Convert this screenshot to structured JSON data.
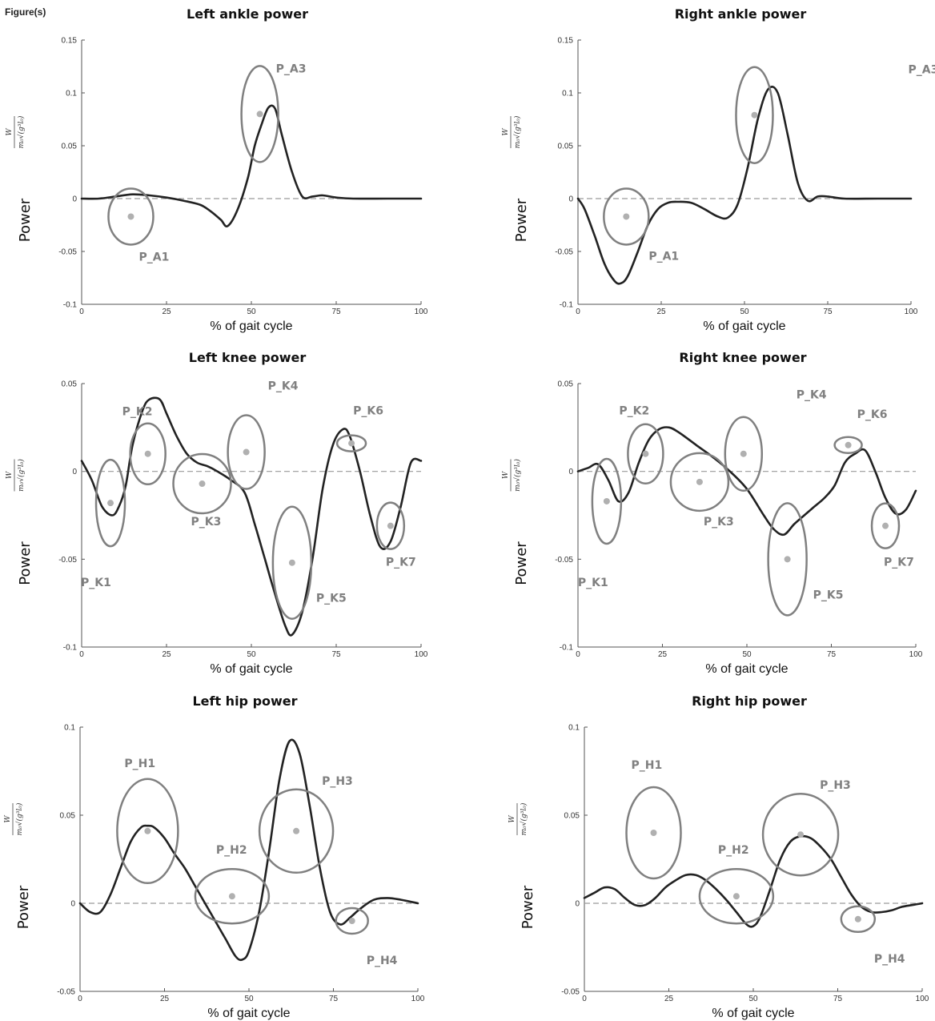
{
  "figure_label": "Figure(s)",
  "chart_data": [
    {
      "type": "line",
      "title": "Left ankle power",
      "xlabel": "% of gait cycle",
      "ylabel": "Power",
      "yunit_num": "W",
      "yunit_den": "m₀√(g³l₀)",
      "xlim": [
        0,
        100
      ],
      "ylim": [
        -0.1,
        0.15
      ],
      "xticks": [
        "0",
        "25",
        "50",
        "75",
        "100"
      ],
      "yticks": [
        "-0.1",
        "-0.05",
        "0",
        "0.05",
        "0.1",
        "0.15"
      ],
      "series": [
        {
          "x": [
            0,
            5,
            10,
            15,
            20,
            25,
            30,
            35,
            38,
            41,
            43,
            46,
            49,
            51,
            53,
            55,
            57,
            59,
            62,
            65,
            68,
            71,
            75,
            80,
            90,
            100
          ],
          "y": [
            0,
            0,
            0.002,
            0.004,
            0.003,
            0.001,
            -0.002,
            -0.006,
            -0.012,
            -0.02,
            -0.026,
            -0.01,
            0.02,
            0.05,
            0.07,
            0.086,
            0.085,
            0.06,
            0.025,
            0.002,
            0.002,
            0.003,
            0.001,
            0,
            0,
            0
          ]
        }
      ],
      "points": [
        {
          "label": "P_A1",
          "x": 14.5,
          "y": -0.017
        },
        {
          "label": "P_A3",
          "x": 52.5,
          "y": 0.08
        }
      ]
    },
    {
      "type": "line",
      "title": "Right ankle power",
      "xlabel": "% of gait cycle",
      "ylabel": "Power",
      "yunit_num": "W",
      "yunit_den": "m₀√(g³l₀)",
      "xlim": [
        0,
        100
      ],
      "ylim": [
        -0.1,
        0.15
      ],
      "xticks": [
        "0",
        "25",
        "50",
        "75",
        "100"
      ],
      "yticks": [
        "-0.1",
        "-0.05",
        "0",
        "0.05",
        "0.1",
        "0.15"
      ],
      "series": [
        {
          "x": [
            0,
            2,
            5,
            8,
            11,
            13,
            15,
            18,
            21,
            24,
            27,
            30,
            34,
            38,
            42,
            45,
            48,
            51,
            54,
            57,
            60,
            63,
            66,
            69,
            72,
            75,
            80,
            90,
            100
          ],
          "y": [
            0,
            -0.01,
            -0.035,
            -0.062,
            -0.078,
            -0.08,
            -0.073,
            -0.05,
            -0.025,
            -0.01,
            -0.004,
            -0.003,
            -0.004,
            -0.01,
            -0.017,
            -0.018,
            -0.005,
            0.03,
            0.075,
            0.103,
            0.1,
            0.06,
            0.015,
            -0.002,
            0.002,
            0.002,
            0,
            0,
            0
          ]
        }
      ],
      "points": [
        {
          "label": "P_A1",
          "x": 14.5,
          "y": -0.017
        },
        {
          "label": "P_A3",
          "x": 53,
          "y": 0.079
        }
      ]
    },
    {
      "type": "line",
      "title": "Left knee power",
      "xlabel": "% of gait cycle",
      "ylabel": "Power",
      "yunit_num": "W",
      "yunit_den": "m₀√(g³l₀)",
      "xlim": [
        0,
        100
      ],
      "ylim": [
        -0.1,
        0.05
      ],
      "xticks": [
        "0",
        "25",
        "50",
        "75",
        "100"
      ],
      "yticks": [
        "-0.1",
        "-0.05",
        "0",
        "0.05"
      ],
      "series": [
        {
          "x": [
            0,
            3,
            6,
            9,
            11,
            13,
            15,
            18,
            20,
            23,
            25,
            28,
            31,
            34,
            37,
            40,
            44,
            48,
            51,
            54,
            57,
            60,
            62,
            65,
            68,
            71,
            74,
            77,
            79,
            82,
            85,
            88,
            91,
            94,
            97,
            100
          ],
          "y": [
            0.006,
            -0.005,
            -0.02,
            -0.025,
            -0.02,
            -0.008,
            0.015,
            0.035,
            0.041,
            0.041,
            0.033,
            0.02,
            0.01,
            0.005,
            0.003,
            0,
            -0.005,
            -0.012,
            -0.03,
            -0.05,
            -0.07,
            -0.088,
            -0.093,
            -0.08,
            -0.05,
            -0.01,
            0.015,
            0.024,
            0.02,
            0,
            -0.025,
            -0.043,
            -0.04,
            -0.02,
            0.005,
            0.006
          ]
        }
      ],
      "points": [
        {
          "label": "P_K1",
          "x": 8.5,
          "y": -0.018
        },
        {
          "label": "P_K2",
          "x": 19.5,
          "y": 0.01
        },
        {
          "label": "P_K3",
          "x": 35.5,
          "y": -0.007
        },
        {
          "label": "P_K4",
          "x": 48.5,
          "y": 0.011
        },
        {
          "label": "P_K5",
          "x": 62,
          "y": -0.052
        },
        {
          "label": "P_K6",
          "x": 79.5,
          "y": 0.016
        },
        {
          "label": "P_K7",
          "x": 91,
          "y": -0.031
        }
      ]
    },
    {
      "type": "line",
      "title": "Right knee power",
      "xlabel": "% of gait cycle",
      "ylabel": "Power",
      "yunit_num": "W",
      "yunit_den": "m₀√(g³l₀)",
      "xlim": [
        0,
        100
      ],
      "ylim": [
        -0.1,
        0.05
      ],
      "xticks": [
        "0",
        "25",
        "50",
        "75",
        "100"
      ],
      "yticks": [
        "-0.1",
        "-0.05",
        "0",
        "0.05"
      ],
      "series": [
        {
          "x": [
            0,
            3,
            6,
            9,
            12,
            15,
            18,
            21,
            24,
            27,
            30,
            35,
            40,
            45,
            50,
            55,
            58,
            61,
            64,
            67,
            70,
            73,
            76,
            79,
            82,
            85,
            88,
            91,
            94,
            97,
            100
          ],
          "y": [
            0,
            0.002,
            0.004,
            -0.005,
            -0.017,
            -0.012,
            0.005,
            0.018,
            0.024,
            0.025,
            0.022,
            0.015,
            0.008,
            0,
            -0.01,
            -0.025,
            -0.033,
            -0.036,
            -0.03,
            -0.025,
            -0.02,
            -0.015,
            -0.008,
            0.005,
            0.01,
            0.012,
            0,
            -0.015,
            -0.024,
            -0.022,
            -0.011
          ]
        }
      ],
      "points": [
        {
          "label": "P_K1",
          "x": 8.5,
          "y": -0.017
        },
        {
          "label": "P_K2",
          "x": 20,
          "y": 0.01
        },
        {
          "label": "P_K3",
          "x": 36,
          "y": -0.006
        },
        {
          "label": "P_K4",
          "x": 49,
          "y": 0.01
        },
        {
          "label": "P_K5",
          "x": 62,
          "y": -0.05
        },
        {
          "label": "P_K6",
          "x": 80,
          "y": 0.015
        },
        {
          "label": "P_K7",
          "x": 91,
          "y": -0.031
        }
      ]
    },
    {
      "type": "line",
      "title": "Left hip power",
      "xlabel": "% of gait cycle",
      "ylabel": "Power",
      "yunit_num": "W",
      "yunit_den": "m₀√(g³l₀)",
      "xlim": [
        0,
        100
      ],
      "ylim": [
        -0.05,
        0.1
      ],
      "xticks": [
        "0",
        "25",
        "50",
        "75",
        "100"
      ],
      "yticks": [
        "-0.05",
        "0",
        "0.05",
        "0.1"
      ],
      "series": [
        {
          "x": [
            0,
            3,
            6,
            9,
            12,
            15,
            18,
            20,
            22,
            25,
            28,
            31,
            34,
            37,
            40,
            43,
            46,
            48,
            50,
            53,
            56,
            59,
            62,
            65,
            68,
            71,
            74,
            77,
            80,
            83,
            87,
            91,
            95,
            100
          ],
          "y": [
            0,
            -0.005,
            -0.005,
            0.005,
            0.02,
            0.035,
            0.043,
            0.044,
            0.043,
            0.037,
            0.028,
            0.02,
            0.01,
            0,
            -0.01,
            -0.02,
            -0.03,
            -0.032,
            -0.027,
            -0.005,
            0.03,
            0.07,
            0.092,
            0.085,
            0.055,
            0.02,
            -0.005,
            -0.012,
            -0.008,
            -0.003,
            0.002,
            0.003,
            0.002,
            0
          ]
        }
      ],
      "points": [
        {
          "label": "P_H1",
          "x": 20,
          "y": 0.041
        },
        {
          "label": "P_H2",
          "x": 45,
          "y": 0.004
        },
        {
          "label": "P_H3",
          "x": 64,
          "y": 0.041
        },
        {
          "label": "P_H4",
          "x": 80.5,
          "y": -0.01
        }
      ]
    },
    {
      "type": "line",
      "title": "Right hip power",
      "xlabel": "% of gait cycle",
      "ylabel": "Power",
      "yunit_num": "W",
      "yunit_den": "m₀√(g³l₀)",
      "xlim": [
        0,
        100
      ],
      "ylim": [
        -0.05,
        0.1
      ],
      "xticks": [
        "0",
        "25",
        "50",
        "75",
        "100"
      ],
      "yticks": [
        "-0.05",
        "0",
        "0.05",
        "0.1"
      ],
      "series": [
        {
          "x": [
            0,
            3,
            6,
            9,
            12,
            15,
            18,
            21,
            24,
            27,
            30,
            33,
            36,
            39,
            42,
            45,
            48,
            50,
            52,
            55,
            58,
            61,
            64,
            67,
            70,
            73,
            76,
            79,
            82,
            85,
            88,
            91,
            94,
            97,
            100
          ],
          "y": [
            0.003,
            0.006,
            0.009,
            0.008,
            0.003,
            -0.001,
            -0.001,
            0.003,
            0.009,
            0.013,
            0.016,
            0.016,
            0.013,
            0.008,
            0.002,
            -0.005,
            -0.012,
            -0.013,
            -0.008,
            0.008,
            0.025,
            0.035,
            0.038,
            0.037,
            0.032,
            0.025,
            0.015,
            0.005,
            -0.002,
            -0.005,
            -0.005,
            -0.004,
            -0.002,
            -0.001,
            0
          ]
        }
      ],
      "points": [
        {
          "label": "P_H1",
          "x": 20.5,
          "y": 0.04
        },
        {
          "label": "P_H2",
          "x": 45,
          "y": 0.004
        },
        {
          "label": "P_H3",
          "x": 64,
          "y": 0.039
        },
        {
          "label": "P_H4",
          "x": 81,
          "y": -0.009
        }
      ]
    }
  ]
}
